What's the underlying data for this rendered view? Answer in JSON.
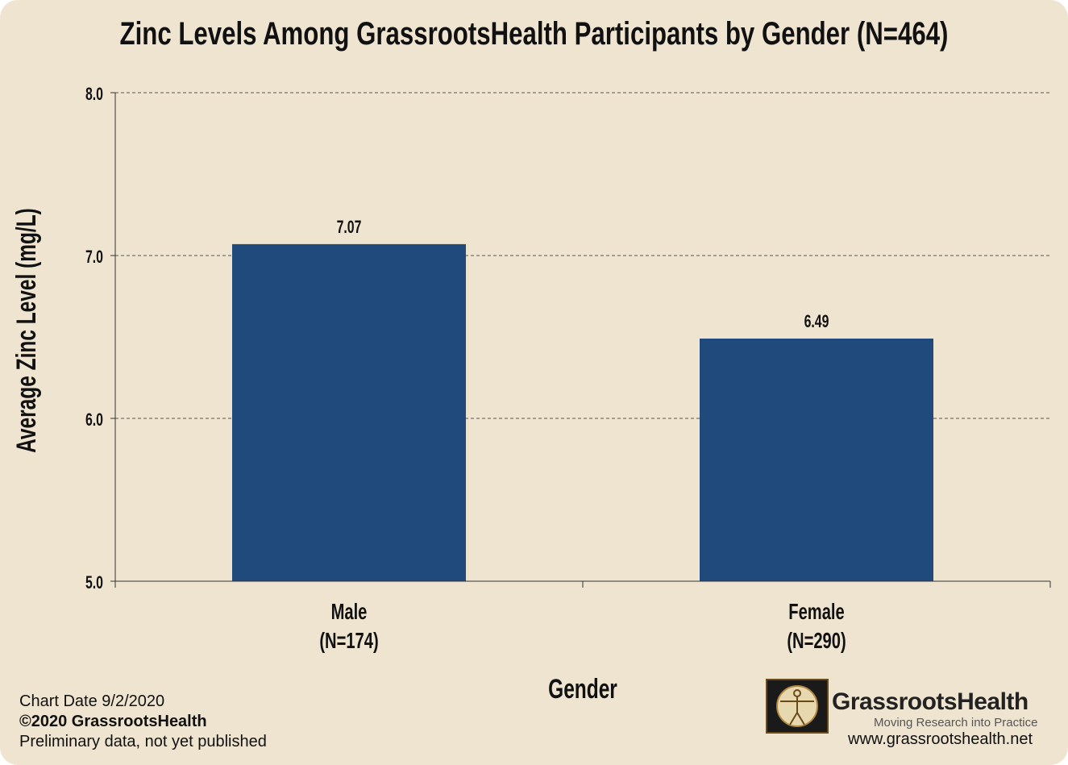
{
  "chart_data": {
    "type": "bar",
    "title": "Zinc Levels Among GrassrootsHealth Participants by Gender (N=464)",
    "xlabel": "Gender",
    "ylabel": "Average Zinc Level (mg/L)",
    "categories": [
      "Male",
      "Female"
    ],
    "category_sublabels": [
      "(N=174)",
      "(N=290)"
    ],
    "values": [
      7.07,
      6.49
    ],
    "data_labels": [
      "7.07",
      "6.49"
    ],
    "ylim": [
      5.0,
      8.0
    ],
    "yticks": [
      "5.0",
      "6.0",
      "7.0",
      "8.0"
    ],
    "grid": true,
    "bar_color": "#204a7c"
  },
  "footer": {
    "chart_date": "Chart Date 9/2/2020",
    "copyright": "©2020 GrassrootsHealth",
    "note": "Preliminary data, not yet published"
  },
  "logo": {
    "name": "GrassrootsHealth",
    "tagline": "Moving Research into Practice",
    "url": "www.grassrootshealth.net"
  }
}
